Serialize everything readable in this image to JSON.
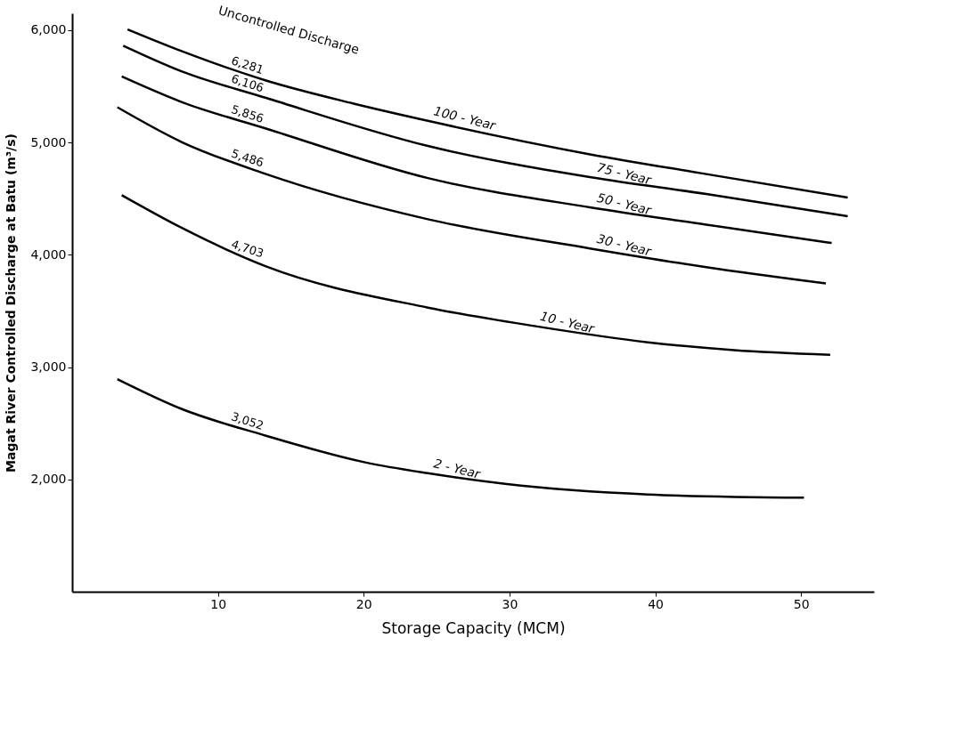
{
  "chart_data": {
    "type": "line",
    "xlabel": "Storage Capacity   (MCM)",
    "ylabel": "Magat River Controlled Discharge at Batu (m³/s)",
    "xlim": [
      0,
      55
    ],
    "xticks": [
      10,
      20,
      30,
      40,
      50
    ],
    "ylim": [
      1000,
      6150
    ],
    "yticks": [
      {
        "value": 2000,
        "label": "2,000"
      },
      {
        "value": 3000,
        "label": "3,000"
      },
      {
        "value": 4000,
        "label": "4,000"
      },
      {
        "value": 5000,
        "label": "5,000"
      },
      {
        "value": 6000,
        "label": "6,000"
      }
    ],
    "grid": false,
    "marker": "none",
    "line_style": "solid",
    "series": [
      {
        "name": "100 - Year",
        "color": "#000000",
        "x": [
          3.8,
          7.5,
          13.3,
          19.2,
          24.4,
          35.6,
          43.5,
          53.2
        ],
        "values": [
          6007,
          5814,
          5552,
          5350,
          5193,
          4893,
          4719,
          4510
        ]
      },
      {
        "name": "75 - Year",
        "color": "#000000",
        "x": [
          3.5,
          7.5,
          13.3,
          24.4,
          35.6,
          43.5,
          53.2
        ],
        "values": [
          5862,
          5634,
          5397,
          4969,
          4690,
          4541,
          4343
        ]
      },
      {
        "name": "50 - Year",
        "color": "#000000",
        "x": [
          3.4,
          7.5,
          13.3,
          24.4,
          35.6,
          43.5,
          52.1
        ],
        "values": [
          5588,
          5361,
          5124,
          4683,
          4421,
          4269,
          4105
        ]
      },
      {
        "name": "30 - Year",
        "color": "#000000",
        "x": [
          3.1,
          7.5,
          13.3,
          24.4,
          35.6,
          43.5,
          51.7
        ],
        "values": [
          5314,
          5005,
          4719,
          4317,
          4055,
          3890,
          3745
        ]
      },
      {
        "name": "10 - Year",
        "color": "#000000",
        "x": [
          3.4,
          7.5,
          13.3,
          24.4,
          31.7,
          39.5,
          45.4,
          52.0
        ],
        "values": [
          4531,
          4241,
          3897,
          3530,
          3366,
          3221,
          3152,
          3110
        ]
      },
      {
        "name": "2 - Year",
        "color": "#000000",
        "x": [
          3.1,
          7.5,
          13.3,
          20.1,
          24.4,
          29.7,
          39.5,
          50.2
        ],
        "values": [
          2893,
          2628,
          2389,
          2152,
          2055,
          1960,
          1866,
          1837
        ]
      }
    ],
    "annotations": [
      "Uncontrolled Discharge",
      "6,281",
      "6,106",
      "5,856",
      "5,486",
      "4,703",
      "3,052"
    ]
  }
}
